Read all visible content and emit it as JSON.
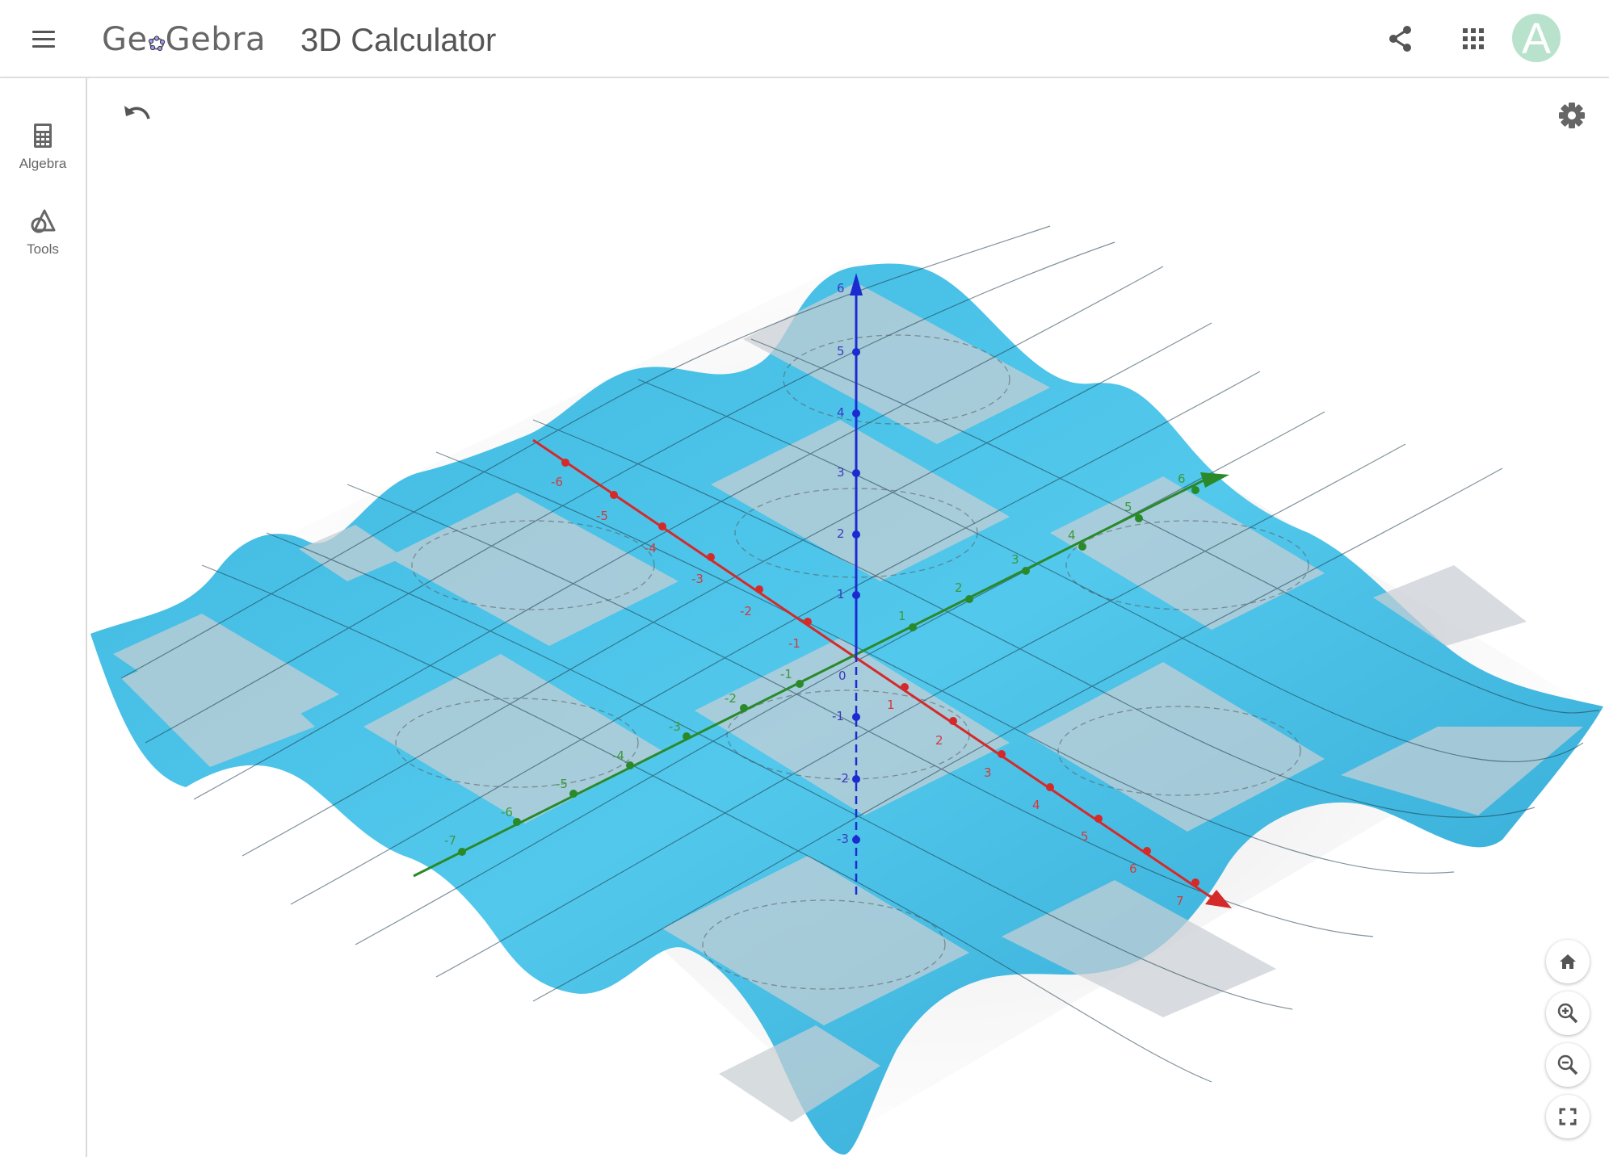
{
  "header": {
    "logo_text_left": "Ge",
    "logo_text_right": "Gebra",
    "app_title": "3D Calculator",
    "avatar_letter": "A",
    "icons": [
      "menu-icon",
      "share-icon",
      "apps-grid-icon"
    ]
  },
  "sidebar": {
    "items": [
      {
        "label": "Algebra",
        "icon": "calculator-icon"
      },
      {
        "label": "Tools",
        "icon": "tools-shapes-icon"
      }
    ]
  },
  "graphics": {
    "icons": [
      "undo-icon",
      "settings-gear-icon",
      "home-icon",
      "zoom-in-icon",
      "zoom-out-icon",
      "fullscreen-icon"
    ],
    "colors": {
      "surface": "#4ec3e6",
      "x_axis": "#d42a2a",
      "y_axis": "#2a8a2a",
      "z_axis": "#1b2bd0"
    },
    "x_ticks": [
      "-6",
      "-5",
      "-4",
      "-3",
      "-2",
      "-1",
      "1",
      "2",
      "3",
      "4",
      "5",
      "6",
      "7"
    ],
    "y_ticks": [
      "-7",
      "-6",
      "-5",
      "-4",
      "-3",
      "-2",
      "-1",
      "1",
      "2",
      "3",
      "4",
      "5",
      "6"
    ],
    "z_ticks": [
      "-3",
      "-2",
      "-1",
      "0",
      "1",
      "2",
      "3",
      "4",
      "5",
      "6"
    ]
  }
}
